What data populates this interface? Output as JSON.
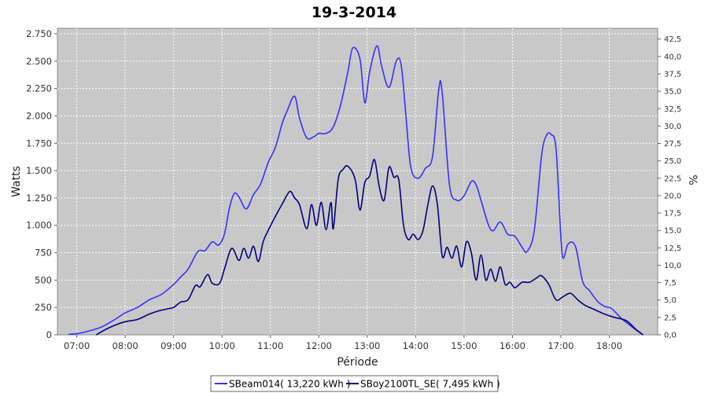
{
  "chart_data": {
    "type": "line",
    "title": "19-3-2014",
    "xlabel": "Période",
    "ylabel": "Watts",
    "y2label": "%",
    "xlim": [
      6.6,
      19.0
    ],
    "ylim": [
      0,
      2800
    ],
    "y2lim": [
      0,
      44.05
    ],
    "grid": true,
    "legend": "bottom-center",
    "x_ticks": [
      {
        "v": 7,
        "label": "07:00"
      },
      {
        "v": 8,
        "label": "08:00"
      },
      {
        "v": 9,
        "label": "09:00"
      },
      {
        "v": 10,
        "label": "10:00"
      },
      {
        "v": 11,
        "label": "11:00"
      },
      {
        "v": 12,
        "label": "12:00"
      },
      {
        "v": 13,
        "label": "13:00"
      },
      {
        "v": 14,
        "label": "14:00"
      },
      {
        "v": 15,
        "label": "15:00"
      },
      {
        "v": 16,
        "label": "16:00"
      },
      {
        "v": 17,
        "label": "17:00"
      },
      {
        "v": 18,
        "label": "18:00"
      }
    ],
    "y_ticks": [
      {
        "v": 0,
        "label": "0"
      },
      {
        "v": 250,
        "label": "250"
      },
      {
        "v": 500,
        "label": "500"
      },
      {
        "v": 750,
        "label": "750"
      },
      {
        "v": 1000,
        "label": "1.000"
      },
      {
        "v": 1250,
        "label": "1.250"
      },
      {
        "v": 1500,
        "label": "1.500"
      },
      {
        "v": 1750,
        "label": "1.750"
      },
      {
        "v": 2000,
        "label": "2.000"
      },
      {
        "v": 2250,
        "label": "2.250"
      },
      {
        "v": 2500,
        "label": "2.500"
      },
      {
        "v": 2750,
        "label": "2.750"
      }
    ],
    "y2_ticks": [
      {
        "v": 0,
        "label": "0,0"
      },
      {
        "v": 2.5,
        "label": "2,5"
      },
      {
        "v": 5,
        "label": "5,0"
      },
      {
        "v": 7.5,
        "label": "7,5"
      },
      {
        "v": 10,
        "label": "10,0"
      },
      {
        "v": 12.5,
        "label": "12,5"
      },
      {
        "v": 15,
        "label": "15,0"
      },
      {
        "v": 17.5,
        "label": "17,5"
      },
      {
        "v": 20,
        "label": "20,0"
      },
      {
        "v": 22.5,
        "label": "22,5"
      },
      {
        "v": 25,
        "label": "25,0"
      },
      {
        "v": 27.5,
        "label": "27,5"
      },
      {
        "v": 30,
        "label": "30,0"
      },
      {
        "v": 32.5,
        "label": "32,5"
      },
      {
        "v": 35,
        "label": "35,0"
      },
      {
        "v": 37.5,
        "label": "37,5"
      },
      {
        "v": 40,
        "label": "40,0"
      },
      {
        "v": 42.5,
        "label": "42,5"
      }
    ],
    "series": [
      {
        "name": "SBeam014( 13,220 kWh )",
        "color": "#3333ff",
        "x": [
          6.83,
          7.0,
          7.25,
          7.5,
          7.75,
          8.0,
          8.25,
          8.5,
          8.75,
          9.0,
          9.15,
          9.3,
          9.5,
          9.65,
          9.8,
          9.93,
          10.05,
          10.15,
          10.25,
          10.35,
          10.5,
          10.65,
          10.8,
          10.95,
          11.1,
          11.25,
          11.35,
          11.5,
          11.6,
          11.75,
          11.9,
          12.0,
          12.15,
          12.3,
          12.45,
          12.6,
          12.7,
          12.85,
          12.95,
          13.05,
          13.2,
          13.3,
          13.45,
          13.6,
          13.7,
          13.8,
          13.9,
          14.05,
          14.2,
          14.35,
          14.48,
          14.55,
          14.7,
          14.85,
          15.0,
          15.15,
          15.25,
          15.35,
          15.5,
          15.6,
          15.75,
          15.9,
          16.05,
          16.2,
          16.3,
          16.45,
          16.6,
          16.7,
          16.8,
          16.9,
          17.0,
          17.05,
          17.15,
          17.3,
          17.45,
          17.6,
          17.75,
          17.9,
          18.05,
          18.25,
          18.45,
          18.6,
          18.7
        ],
        "y": [
          5,
          10,
          35,
          70,
          130,
          200,
          250,
          320,
          370,
          460,
          530,
          600,
          760,
          770,
          850,
          820,
          920,
          1150,
          1290,
          1260,
          1150,
          1280,
          1380,
          1570,
          1710,
          1940,
          2050,
          2180,
          1980,
          1800,
          1810,
          1840,
          1840,
          1900,
          2100,
          2400,
          2620,
          2520,
          2120,
          2400,
          2640,
          2450,
          2260,
          2500,
          2470,
          2000,
          1530,
          1430,
          1520,
          1630,
          2250,
          2210,
          1370,
          1230,
          1270,
          1400,
          1370,
          1230,
          1010,
          950,
          1030,
          920,
          900,
          800,
          760,
          950,
          1630,
          1820,
          1830,
          1700,
          900,
          700,
          830,
          810,
          490,
          400,
          310,
          260,
          240,
          150,
          80,
          30,
          0
        ]
      },
      {
        "name": "SBoy2100TL_SE( 7,495 kWh )",
        "color": "#000080",
        "x": [
          7.4,
          7.6,
          7.8,
          8.0,
          8.25,
          8.5,
          8.7,
          8.8,
          8.9,
          9.0,
          9.15,
          9.3,
          9.45,
          9.55,
          9.7,
          9.8,
          9.95,
          10.05,
          10.2,
          10.35,
          10.45,
          10.55,
          10.65,
          10.75,
          10.85,
          10.95,
          11.1,
          11.25,
          11.4,
          11.5,
          11.6,
          11.75,
          11.85,
          11.95,
          12.05,
          12.15,
          12.25,
          12.3,
          12.4,
          12.5,
          12.6,
          12.75,
          12.85,
          12.95,
          13.05,
          13.15,
          13.25,
          13.35,
          13.45,
          13.55,
          13.65,
          13.75,
          13.85,
          13.95,
          14.05,
          14.15,
          14.25,
          14.35,
          14.45,
          14.55,
          14.65,
          14.75,
          14.85,
          14.95,
          15.05,
          15.15,
          15.25,
          15.35,
          15.45,
          15.55,
          15.65,
          15.75,
          15.85,
          15.95,
          16.05,
          16.2,
          16.35,
          16.5,
          16.6,
          16.75,
          16.9,
          17.05,
          17.2,
          17.35,
          17.5,
          17.7,
          17.9,
          18.1,
          18.35,
          18.55,
          18.7
        ],
        "y": [
          0,
          50,
          90,
          120,
          140,
          190,
          220,
          230,
          240,
          250,
          300,
          320,
          450,
          440,
          550,
          470,
          470,
          600,
          790,
          680,
          790,
          700,
          810,
          670,
          850,
          950,
          1080,
          1200,
          1310,
          1250,
          1190,
          970,
          1190,
          1000,
          1210,
          960,
          1210,
          970,
          1420,
          1510,
          1540,
          1420,
          1140,
          1390,
          1450,
          1600,
          1350,
          1230,
          1530,
          1440,
          1420,
          1000,
          870,
          920,
          870,
          950,
          1180,
          1360,
          1190,
          720,
          800,
          700,
          810,
          620,
          850,
          750,
          500,
          730,
          500,
          600,
          490,
          620,
          460,
          480,
          430,
          480,
          480,
          520,
          540,
          460,
          320,
          350,
          380,
          320,
          270,
          230,
          190,
          160,
          130,
          50,
          0
        ]
      }
    ]
  }
}
